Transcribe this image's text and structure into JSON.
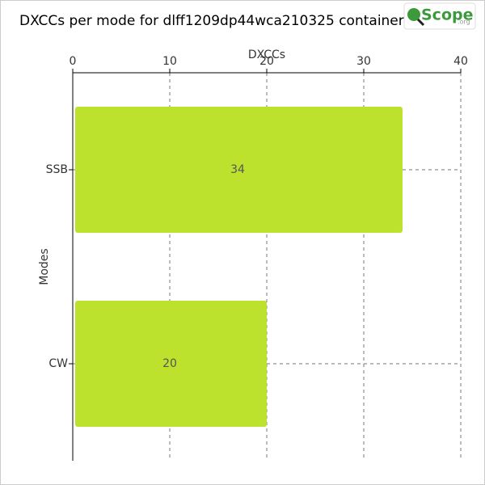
{
  "logo": {
    "text": "Scope",
    "suffix": ".org"
  },
  "chart_data": {
    "type": "bar",
    "orientation": "horizontal",
    "title": "DXCCs per mode for dlff1209dp44wca210325 container.",
    "x_label": "DXCCs",
    "y_label": "Modes",
    "categories": [
      "SSB",
      "CW"
    ],
    "values": [
      34,
      20
    ],
    "color": "#bce22e",
    "xlim": [
      0,
      40
    ],
    "xticks": [
      0,
      10,
      20,
      30,
      40
    ],
    "grid": true
  }
}
